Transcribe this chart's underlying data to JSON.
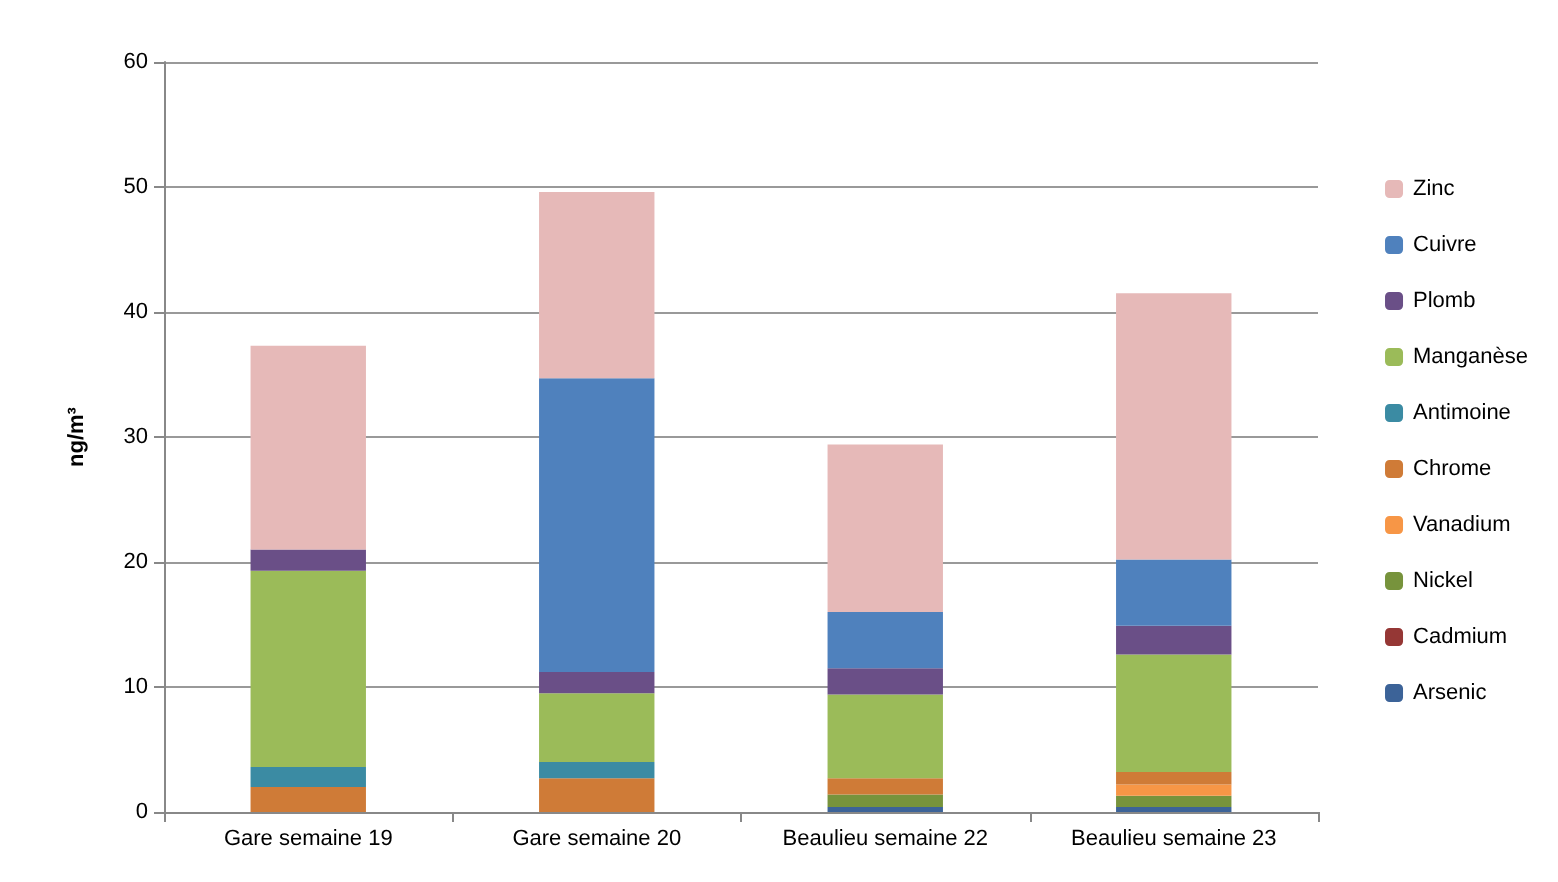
{
  "chart_data": {
    "type": "bar",
    "stacked": true,
    "ylabel": "ng/m³",
    "categories": [
      "Gare semaine 19",
      "Gare semaine 20",
      "Beaulieu semaine 22",
      "Beaulieu semaine 23"
    ],
    "series": [
      {
        "name": "Arsenic",
        "color": "#3c6398",
        "values": [
          0,
          0,
          0.4,
          0.4
        ]
      },
      {
        "name": "Cadmium",
        "color": "#953735",
        "values": [
          0,
          0,
          0,
          0
        ]
      },
      {
        "name": "Nickel",
        "color": "#77933c",
        "values": [
          0,
          0,
          1.0,
          0.9
        ]
      },
      {
        "name": "Vanadium",
        "color": "#f79646",
        "values": [
          0,
          0,
          0,
          0.9
        ]
      },
      {
        "name": "Chrome",
        "color": "#cf7b37",
        "values": [
          2.0,
          2.7,
          1.3,
          1.0
        ]
      },
      {
        "name": "Antimoine",
        "color": "#3b8ba3",
        "values": [
          1.6,
          1.3,
          0,
          0
        ]
      },
      {
        "name": "Manganèse",
        "color": "#9bbb59",
        "values": [
          15.7,
          5.5,
          6.7,
          9.4
        ]
      },
      {
        "name": "Plomb",
        "color": "#6a4f87",
        "values": [
          1.7,
          1.7,
          2.1,
          2.3
        ]
      },
      {
        "name": "Cuivre",
        "color": "#4f81bd",
        "values": [
          0,
          23.5,
          4.5,
          5.3
        ]
      },
      {
        "name": "Zinc",
        "color": "#e6b9b8",
        "values": [
          16.3,
          14.9,
          13.4,
          21.3
        ]
      }
    ],
    "ylim": [
      0,
      60
    ],
    "yticks": [
      0,
      10,
      20,
      30,
      40,
      50,
      60
    ],
    "grid": "y",
    "legend": "right"
  }
}
